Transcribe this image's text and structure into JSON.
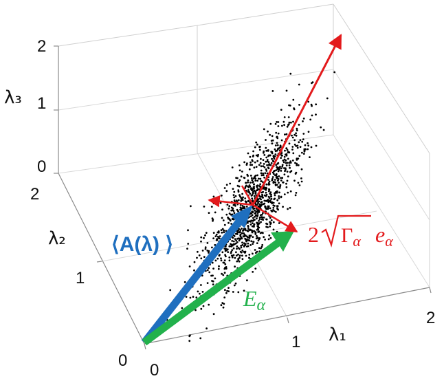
{
  "axes": {
    "x": {
      "label": "λ₁",
      "ticks": [
        "0",
        "1",
        "2"
      ]
    },
    "y": {
      "label": "λ₂",
      "ticks": [
        "0",
        "1",
        "2"
      ]
    },
    "z": {
      "label": "λ₃",
      "ticks": [
        "0",
        "1",
        "2"
      ]
    }
  },
  "labels": {
    "mean": "⟨A(λ) ⟩",
    "e_alpha": "E",
    "e_alpha_sub": "α",
    "pc_two": "2",
    "pc_gamma": "Γ",
    "pc_gamma_sub": "α",
    "pc_e": "e",
    "pc_e_sub": "α"
  },
  "colors": {
    "mean_vector": "#1f6fbf",
    "e_vector": "#22b14c",
    "principal_axes": "#e31a1c",
    "points": "#000000"
  },
  "scatter": {
    "count": 1200,
    "description_free": true
  }
}
